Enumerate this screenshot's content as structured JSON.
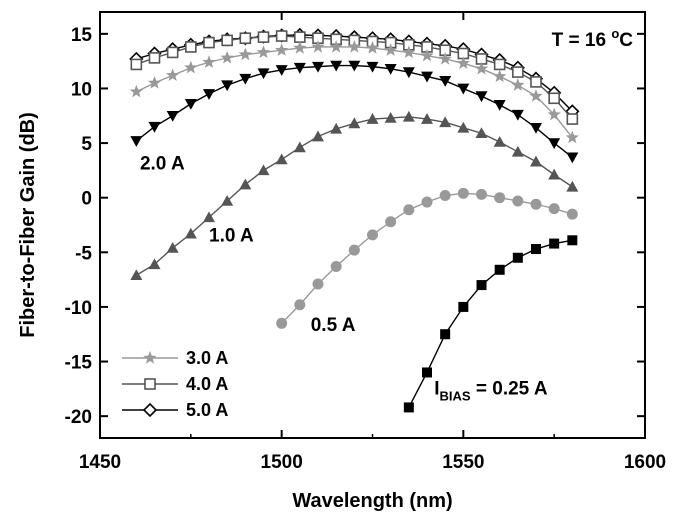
{
  "chart_data": {
    "type": "line",
    "xlabel": "Wavelength (nm)",
    "ylabel": "Fiber-to-Fiber Gain (dB)",
    "xlim": [
      1450,
      1600
    ],
    "ylim": [
      -22,
      17
    ],
    "xticks": [
      1450,
      1500,
      1550,
      1600
    ],
    "yticks": [
      15,
      10,
      5,
      0,
      -5,
      -10,
      -15,
      -20
    ],
    "xtick_labels": [
      "1450",
      "1500",
      "1550",
      "1600"
    ],
    "ytick_labels": [
      "15",
      "10",
      "5",
      "0",
      "-5",
      "-10",
      "-15",
      "-20"
    ],
    "temperature_label_main": "T = 16 ",
    "temperature_label_sup": "o",
    "temperature_label_unit": "C",
    "series": [
      {
        "name": "5.0 A",
        "marker": "diamond-open",
        "color": "#000000",
        "x": [
          1460,
          1465,
          1470,
          1475,
          1480,
          1485,
          1490,
          1495,
          1500,
          1505,
          1510,
          1515,
          1520,
          1525,
          1530,
          1535,
          1540,
          1545,
          1550,
          1555,
          1560,
          1565,
          1570,
          1575,
          1580
        ],
        "y": [
          12.7,
          13.2,
          13.6,
          14.0,
          14.3,
          14.5,
          14.6,
          14.75,
          14.85,
          14.9,
          14.85,
          14.8,
          14.7,
          14.6,
          14.5,
          14.3,
          14.1,
          13.9,
          13.6,
          13.1,
          12.6,
          11.9,
          10.9,
          9.6,
          7.9
        ]
      },
      {
        "name": "4.0 A",
        "marker": "square-open",
        "color": "#555555",
        "x": [
          1460,
          1465,
          1470,
          1475,
          1480,
          1485,
          1490,
          1495,
          1500,
          1505,
          1510,
          1515,
          1520,
          1525,
          1530,
          1535,
          1540,
          1545,
          1550,
          1555,
          1560,
          1565,
          1570,
          1575,
          1580
        ],
        "y": [
          12.2,
          12.8,
          13.3,
          13.8,
          14.2,
          14.4,
          14.6,
          14.7,
          14.8,
          14.7,
          14.6,
          14.5,
          14.4,
          14.3,
          14.2,
          14.0,
          13.8,
          13.5,
          13.2,
          12.7,
          12.2,
          11.5,
          10.6,
          9.1,
          7.2
        ]
      },
      {
        "name": "3.0 A",
        "marker": "star",
        "color": "#999999",
        "x": [
          1460,
          1465,
          1470,
          1475,
          1480,
          1485,
          1490,
          1495,
          1500,
          1505,
          1510,
          1515,
          1520,
          1525,
          1530,
          1535,
          1540,
          1545,
          1550,
          1555,
          1560,
          1565,
          1570,
          1575,
          1580
        ],
        "y": [
          9.7,
          10.5,
          11.2,
          11.9,
          12.4,
          12.8,
          13.1,
          13.3,
          13.5,
          13.7,
          13.8,
          13.8,
          13.8,
          13.7,
          13.5,
          13.3,
          13.0,
          12.7,
          12.3,
          11.8,
          11.1,
          10.3,
          9.3,
          7.6,
          5.5
        ]
      },
      {
        "name": "2.0 A",
        "marker": "triangle-down",
        "color": "#000000",
        "x": [
          1460,
          1465,
          1470,
          1475,
          1480,
          1485,
          1490,
          1495,
          1500,
          1505,
          1510,
          1515,
          1520,
          1525,
          1530,
          1535,
          1540,
          1545,
          1550,
          1555,
          1560,
          1565,
          1570,
          1575,
          1580
        ],
        "y": [
          5.2,
          6.5,
          7.5,
          8.6,
          9.5,
          10.3,
          10.9,
          11.4,
          11.7,
          11.9,
          12.0,
          12.1,
          12.1,
          12.0,
          11.8,
          11.5,
          11.1,
          10.7,
          10.0,
          9.3,
          8.5,
          7.6,
          6.4,
          5.0,
          3.7
        ]
      },
      {
        "name": "1.0 A",
        "marker": "triangle-up",
        "color": "#555555",
        "x": [
          1460,
          1465,
          1470,
          1475,
          1480,
          1485,
          1490,
          1495,
          1500,
          1505,
          1510,
          1515,
          1520,
          1525,
          1530,
          1535,
          1540,
          1545,
          1550,
          1555,
          1560,
          1565,
          1570,
          1575,
          1580
        ],
        "y": [
          -7.1,
          -6.1,
          -4.6,
          -3.3,
          -1.8,
          -0.3,
          1.2,
          2.5,
          3.5,
          4.6,
          5.6,
          6.3,
          6.8,
          7.2,
          7.3,
          7.4,
          7.2,
          6.9,
          6.4,
          5.9,
          5.1,
          4.2,
          3.3,
          2.1,
          1.0
        ]
      },
      {
        "name": "0.5 A",
        "marker": "circle",
        "color": "#999999",
        "x": [
          1500,
          1505,
          1510,
          1515,
          1520,
          1525,
          1530,
          1535,
          1540,
          1545,
          1550,
          1555,
          1560,
          1565,
          1570,
          1575,
          1580
        ],
        "y": [
          -11.5,
          -9.8,
          -7.9,
          -6.3,
          -4.8,
          -3.4,
          -2.2,
          -1.1,
          -0.4,
          0.2,
          0.4,
          0.3,
          0.0,
          -0.3,
          -0.6,
          -1.0,
          -1.5
        ]
      },
      {
        "name": "IBIAS = 0.25 A",
        "marker": "square",
        "color": "#000000",
        "x": [
          1535,
          1540,
          1545,
          1550,
          1555,
          1560,
          1565,
          1570,
          1575,
          1580
        ],
        "y": [
          -19.2,
          -16.0,
          -12.5,
          -10.0,
          -8.0,
          -6.6,
          -5.5,
          -4.7,
          -4.2,
          -3.9
        ]
      }
    ],
    "annotations": [
      {
        "text": "2.0 A",
        "x": 1461,
        "y": 2.6
      },
      {
        "text": "1.0 A",
        "x": 1480,
        "y": -4.0
      },
      {
        "text": "0.5 A",
        "x": 1508,
        "y": -12.2
      }
    ],
    "ibias_annotation": {
      "main": "I",
      "sub": "BIAS",
      "rest": " = 0.25 A",
      "x": 1542,
      "y": -18.0
    },
    "legend": {
      "placement": "bottom-left",
      "items": [
        {
          "label": "3.0 A",
          "marker": "star",
          "color": "#999999"
        },
        {
          "label": "4.0 A",
          "marker": "square-open",
          "color": "#555555"
        },
        {
          "label": "5.0 A",
          "marker": "diamond-open",
          "color": "#000000"
        }
      ]
    }
  }
}
